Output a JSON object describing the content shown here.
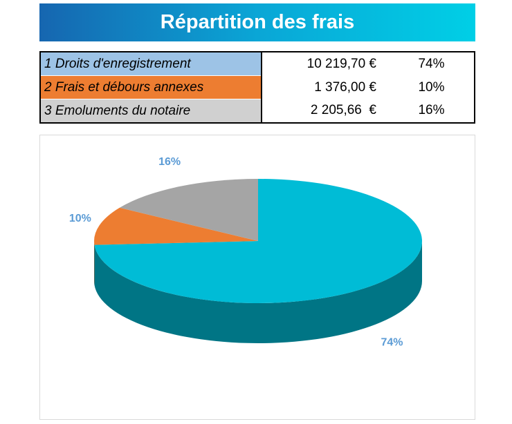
{
  "title": "Répartition des frais",
  "table": {
    "rows": [
      [
        "1 Droits d'enregistrement",
        "10 219,70 €",
        "74%"
      ],
      [
        "2 Frais et débours annexes",
        "1 376,00 €",
        "10%"
      ],
      [
        "3 Emoluments du notaire",
        "2 205,66  €",
        "16%"
      ]
    ]
  },
  "chart_data": {
    "type": "pie",
    "values": [
      74,
      10,
      16
    ],
    "value_labels": [
      "74%",
      "10%",
      "16%"
    ],
    "colors": [
      "#00bcd6",
      "#ed7d31",
      "#a5a5a5"
    ]
  }
}
